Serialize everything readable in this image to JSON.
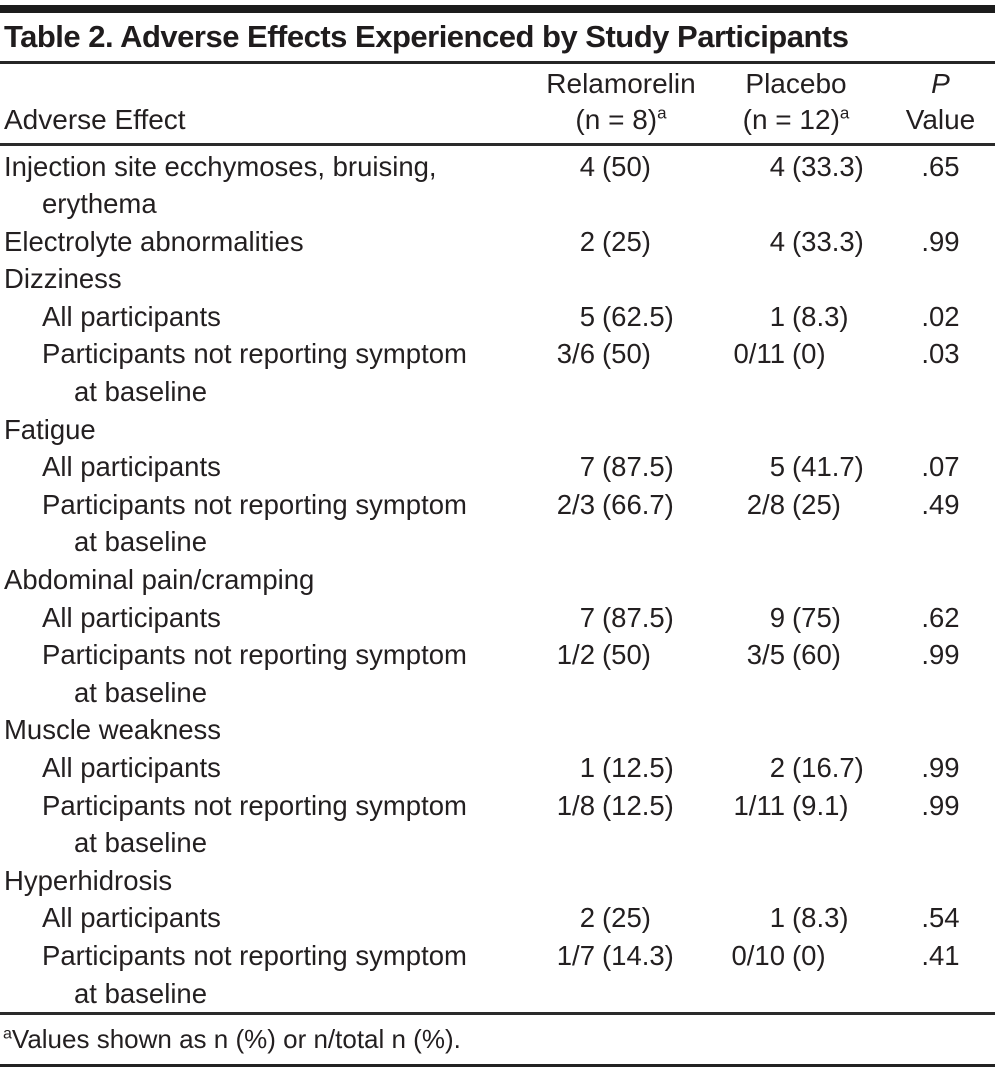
{
  "table": {
    "title": "Table 2. Adverse Effects Experienced by Study Participants",
    "columns": {
      "effect": "Adverse Effect",
      "relamorelin": {
        "line1": "Relamorelin",
        "line2": "(n = 8)",
        "note_marker": "a"
      },
      "placebo": {
        "line1": "Placebo",
        "line2": "(n = 12)",
        "note_marker": "a"
      },
      "p_value": {
        "line1": "P",
        "line2": "Value"
      }
    },
    "rows": [
      {
        "type": "data",
        "indent": 0,
        "label_lines": [
          "Injection site ecchymoses, bruising,",
          "erythema"
        ],
        "relamorelin": {
          "n": "4",
          "pct": "(50)"
        },
        "placebo": {
          "n": "4",
          "pct": "(33.3)"
        },
        "p": ".65"
      },
      {
        "type": "data",
        "indent": 0,
        "label_lines": [
          "Electrolyte abnormalities"
        ],
        "relamorelin": {
          "n": "2",
          "pct": "(25)"
        },
        "placebo": {
          "n": "4",
          "pct": "(33.3)"
        },
        "p": ".99"
      },
      {
        "type": "group",
        "indent": 0,
        "label_lines": [
          "Dizziness"
        ]
      },
      {
        "type": "data",
        "indent": 1,
        "label_lines": [
          "All participants"
        ],
        "relamorelin": {
          "n": "5",
          "pct": "(62.5)"
        },
        "placebo": {
          "n": "1",
          "pct": "(8.3)"
        },
        "p": ".02"
      },
      {
        "type": "data",
        "indent": 1,
        "label_lines": [
          "Participants not reporting symptom",
          "at baseline"
        ],
        "relamorelin": {
          "n": "3/6",
          "pct": "(50)"
        },
        "placebo": {
          "n": "0/11",
          "pct": "(0)"
        },
        "p": ".03"
      },
      {
        "type": "group",
        "indent": 0,
        "label_lines": [
          "Fatigue"
        ]
      },
      {
        "type": "data",
        "indent": 1,
        "label_lines": [
          "All participants"
        ],
        "relamorelin": {
          "n": "7",
          "pct": "(87.5)"
        },
        "placebo": {
          "n": "5",
          "pct": "(41.7)"
        },
        "p": ".07"
      },
      {
        "type": "data",
        "indent": 1,
        "label_lines": [
          "Participants not reporting symptom",
          "at baseline"
        ],
        "relamorelin": {
          "n": "2/3",
          "pct": "(66.7)"
        },
        "placebo": {
          "n": "2/8",
          "pct": "(25)"
        },
        "p": ".49"
      },
      {
        "type": "group",
        "indent": 0,
        "label_lines": [
          "Abdominal pain/cramping"
        ]
      },
      {
        "type": "data",
        "indent": 1,
        "label_lines": [
          "All participants"
        ],
        "relamorelin": {
          "n": "7",
          "pct": "(87.5)"
        },
        "placebo": {
          "n": "9",
          "pct": "(75)"
        },
        "p": ".62"
      },
      {
        "type": "data",
        "indent": 1,
        "label_lines": [
          "Participants not reporting symptom",
          "at baseline"
        ],
        "relamorelin": {
          "n": "1/2",
          "pct": "(50)"
        },
        "placebo": {
          "n": "3/5",
          "pct": "(60)"
        },
        "p": ".99"
      },
      {
        "type": "group",
        "indent": 0,
        "label_lines": [
          "Muscle weakness"
        ]
      },
      {
        "type": "data",
        "indent": 1,
        "label_lines": [
          "All participants"
        ],
        "relamorelin": {
          "n": "1",
          "pct": "(12.5)"
        },
        "placebo": {
          "n": "2",
          "pct": "(16.7)"
        },
        "p": ".99"
      },
      {
        "type": "data",
        "indent": 1,
        "label_lines": [
          "Participants not reporting symptom",
          "at baseline"
        ],
        "relamorelin": {
          "n": "1/8",
          "pct": "(12.5)"
        },
        "placebo": {
          "n": "1/11",
          "pct": "(9.1)"
        },
        "p": ".99"
      },
      {
        "type": "group",
        "indent": 0,
        "label_lines": [
          "Hyperhidrosis"
        ]
      },
      {
        "type": "data",
        "indent": 1,
        "label_lines": [
          "All participants"
        ],
        "relamorelin": {
          "n": "2",
          "pct": "(25)"
        },
        "placebo": {
          "n": "1",
          "pct": "(8.3)"
        },
        "p": ".54"
      },
      {
        "type": "data",
        "indent": 1,
        "label_lines": [
          "Participants not reporting symptom",
          "at baseline"
        ],
        "relamorelin": {
          "n": "1/7",
          "pct": "(14.3)"
        },
        "placebo": {
          "n": "0/10",
          "pct": "(0)"
        },
        "p": ".41"
      }
    ],
    "footnote": {
      "marker": "a",
      "text": "Values shown as n (%) or n/total n (%)."
    }
  },
  "colors": {
    "text": "#231f20",
    "rule": "#1c1c1c",
    "background": "#ffffff"
  }
}
